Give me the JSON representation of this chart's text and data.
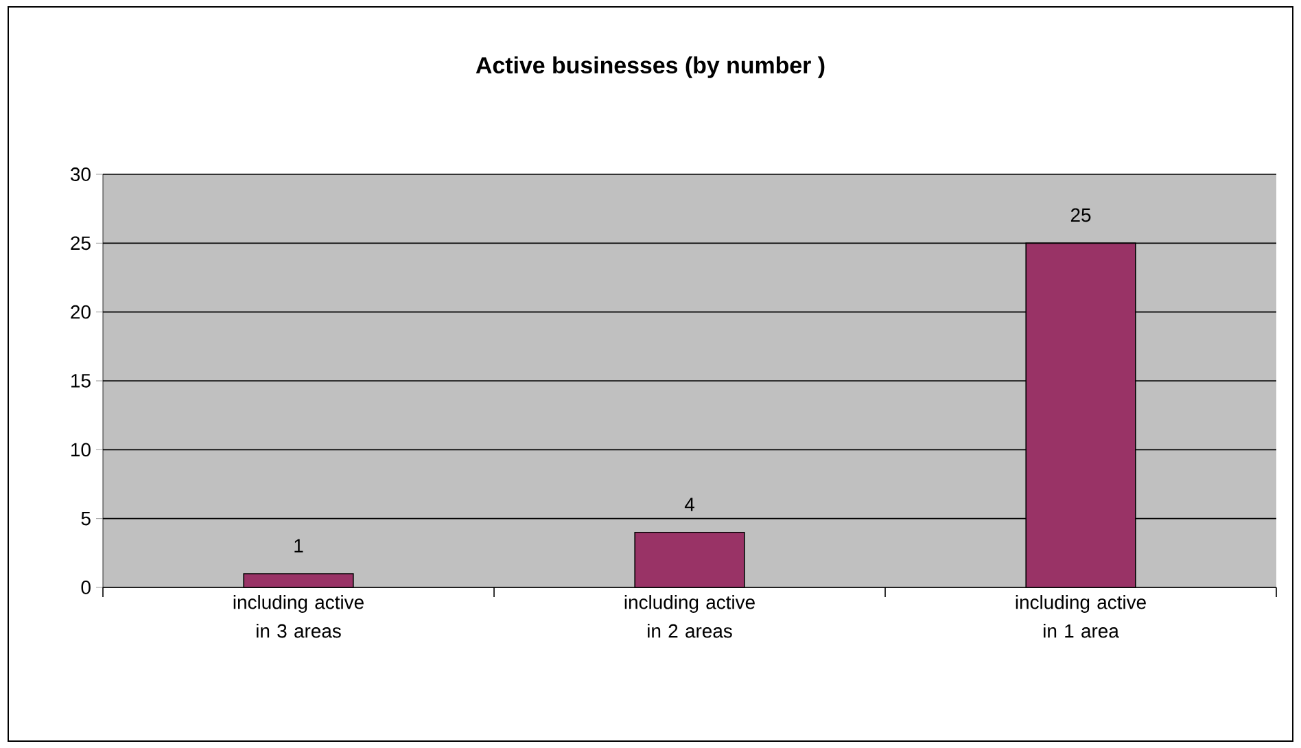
{
  "chart_data": {
    "type": "bar",
    "title": "Active businesses (by number )",
    "categories": [
      "including active in 3 areas",
      "including active in 2 areas",
      "including active in 1 area"
    ],
    "values": [
      1,
      4,
      25
    ],
    "color": "#993366",
    "ylim": [
      0,
      30
    ],
    "yticks": [
      0,
      5,
      10,
      15,
      20,
      25,
      30
    ],
    "grid": "y",
    "data_labels": true
  }
}
